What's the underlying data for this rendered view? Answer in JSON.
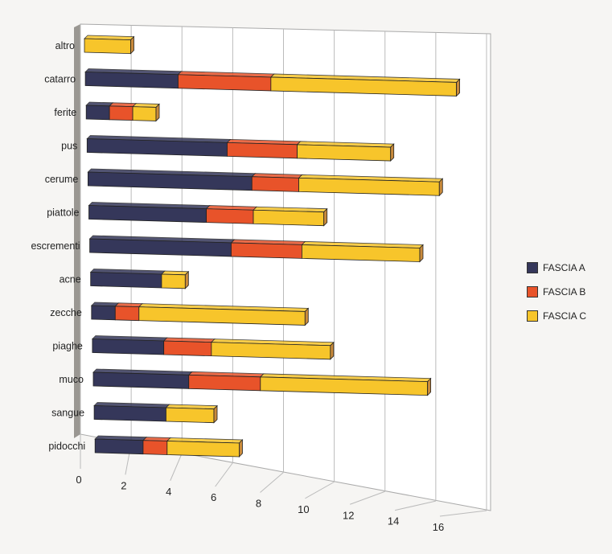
{
  "chart_data": {
    "type": "bar",
    "orientation": "horizontal",
    "stacked": true,
    "style": "3d",
    "title": "",
    "xlabel": "",
    "ylabel": "",
    "xlim": [
      0,
      16
    ],
    "xticks": [
      "0",
      "2",
      "4",
      "6",
      "8",
      "10",
      "12",
      "14",
      "16"
    ],
    "grid": true,
    "legend_position": "right",
    "categories": [
      "altro",
      "catarro",
      "ferite",
      "pus",
      "cerume",
      "piattole",
      "escrementi",
      "acne",
      "zecche",
      "piaghe",
      "muco",
      "sangue",
      "pidocchi"
    ],
    "series": [
      {
        "name": "FASCIA A",
        "color": "#35375a",
        "values": [
          0,
          4,
          1,
          6,
          7,
          5,
          6,
          3,
          1,
          3,
          4,
          3,
          2
        ]
      },
      {
        "name": "FASCIA B",
        "color": "#e8532a",
        "values": [
          0,
          4,
          1,
          3,
          2,
          2,
          3,
          0,
          1,
          2,
          3,
          0,
          1
        ]
      },
      {
        "name": "FASCIA C",
        "color": "#f7c52b",
        "values": [
          2,
          8,
          1,
          4,
          6,
          3,
          5,
          1,
          7,
          5,
          7,
          2,
          3
        ]
      }
    ]
  }
}
